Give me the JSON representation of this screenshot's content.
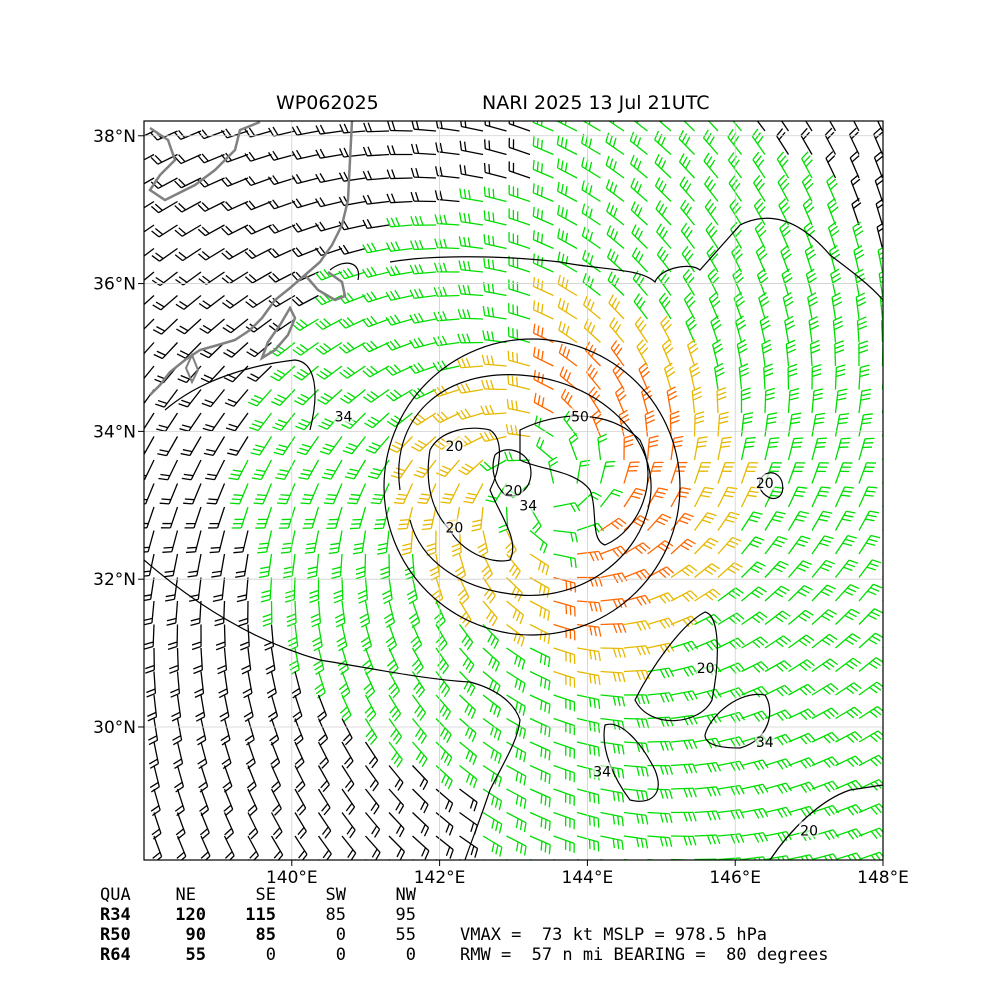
{
  "header": {
    "storm_id": "WP062025",
    "title": "NARI 2025 13 Jul 21UTC"
  },
  "axes": {
    "lat_ticks": [
      "38°N",
      "36°N",
      "34°N",
      "32°N",
      "30°N"
    ],
    "lat_values": [
      38,
      36,
      34,
      32,
      30
    ],
    "lon_ticks": [
      "140°E",
      "142°E",
      "144°E",
      "146°E",
      "148°E"
    ],
    "lon_values": [
      140,
      142,
      144,
      146,
      148
    ],
    "lon_range": [
      138,
      148
    ],
    "lat_range": [
      28.2,
      38.2
    ]
  },
  "contours": {
    "labels": [
      {
        "text": "34",
        "lon": 140.7,
        "lat": 34.2
      },
      {
        "text": "50",
        "lon": 143.9,
        "lat": 34.2
      },
      {
        "text": "20",
        "lon": 142.2,
        "lat": 33.8
      },
      {
        "text": "20",
        "lon": 143.0,
        "lat": 33.2
      },
      {
        "text": "34",
        "lon": 143.2,
        "lat": 33.0
      },
      {
        "text": "20",
        "lon": 142.2,
        "lat": 32.7
      },
      {
        "text": "20",
        "lon": 145.6,
        "lat": 30.8
      },
      {
        "text": "20",
        "lon": 146.4,
        "lat": 33.3
      },
      {
        "text": "34",
        "lon": 146.4,
        "lat": 29.8
      },
      {
        "text": "34",
        "lon": 144.2,
        "lat": 29.4
      },
      {
        "text": "20",
        "lon": 147.0,
        "lat": 28.6
      }
    ]
  },
  "storm": {
    "center_lon": 143.4,
    "center_lat": 33.2
  },
  "wind_colors": {
    "below_34": "#000000",
    "r34": "#00dd00",
    "r50": "#e6b800",
    "r64": "#ff6600"
  },
  "table": {
    "headers": [
      "QUA",
      "NE",
      "SE",
      "SW",
      "NW"
    ],
    "rows": [
      {
        "label": "R34",
        "values": [
          "120",
          "115",
          "85",
          "95"
        ]
      },
      {
        "label": "R50",
        "values": [
          "90",
          "85",
          "0",
          "55"
        ]
      },
      {
        "label": "R64",
        "values": [
          "55",
          "0",
          "0",
          "0"
        ]
      }
    ]
  },
  "stats": {
    "line1": "VMAX =  73 kt MSLP = 978.5 hPa",
    "line2": "RMW =  57 n mi BEARING =  80 degrees"
  }
}
